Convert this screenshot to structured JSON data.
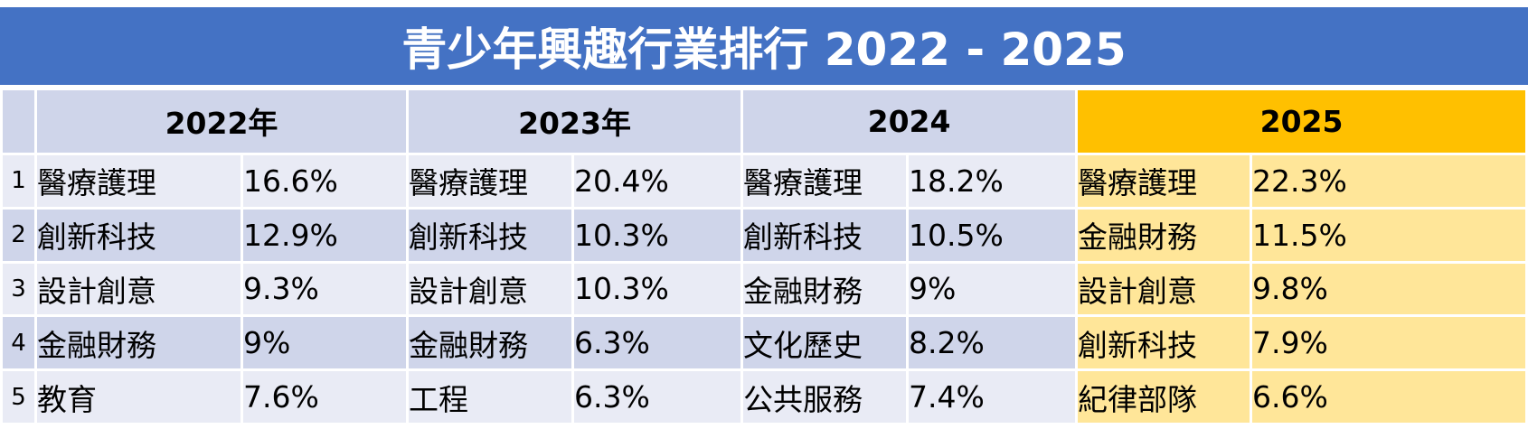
{
  "title": "青少年興趣行業排行 2022 - 2025",
  "colors": {
    "title_bar": "#4472c4",
    "header": "#cfd5ea",
    "header_highlight": "#ffc000",
    "row_light": "#e9ebf5",
    "row_dark": "#cfd5ea",
    "row_highlight": "#ffe699"
  },
  "years": [
    "2022年",
    "2023年",
    "2024",
    "2025"
  ],
  "rows": [
    {
      "rank": "1",
      "cells": [
        {
          "industry": "醫療護理",
          "pct": "16.6%"
        },
        {
          "industry": "醫療護理",
          "pct": "20.4%"
        },
        {
          "industry": "醫療護理",
          "pct": "18.2%"
        },
        {
          "industry": "醫療護理",
          "pct": "22.3%"
        }
      ]
    },
    {
      "rank": "2",
      "cells": [
        {
          "industry": "創新科技",
          "pct": "12.9%"
        },
        {
          "industry": "創新科技",
          "pct": "10.3%"
        },
        {
          "industry": "創新科技",
          "pct": "10.5%"
        },
        {
          "industry": "金融財務",
          "pct": "11.5%"
        }
      ]
    },
    {
      "rank": "3",
      "cells": [
        {
          "industry": "設計創意",
          "pct": "9.3%"
        },
        {
          "industry": "設計創意",
          "pct": "10.3%"
        },
        {
          "industry": "金融財務",
          "pct": "9%"
        },
        {
          "industry": "設計創意",
          "pct": "9.8%"
        }
      ]
    },
    {
      "rank": "4",
      "cells": [
        {
          "industry": "金融財務",
          "pct": "9%"
        },
        {
          "industry": "金融財務",
          "pct": "6.3%"
        },
        {
          "industry": "文化歷史",
          "pct": "8.2%"
        },
        {
          "industry": "創新科技",
          "pct": "7.9%"
        }
      ]
    },
    {
      "rank": "5",
      "cells": [
        {
          "industry": "教育",
          "pct": "7.6%"
        },
        {
          "industry": "工程",
          "pct": "6.3%"
        },
        {
          "industry": "公共服務",
          "pct": "7.4%"
        },
        {
          "industry": "紀律部隊",
          "pct": "6.6%"
        }
      ]
    }
  ]
}
